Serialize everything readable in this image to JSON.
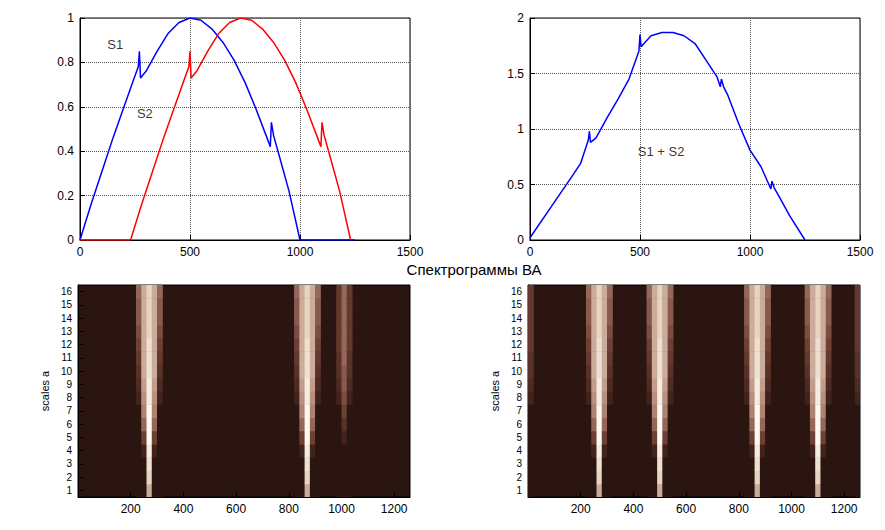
{
  "title": "Спектрограммы ВА",
  "chart_data": [
    {
      "type": "line",
      "grid": true,
      "xlim": [
        0,
        1500
      ],
      "xticks": [
        0,
        500,
        1000,
        1500
      ],
      "ylim": [
        0,
        1
      ],
      "yticks": [
        0,
        0.2,
        0.4,
        0.6,
        0.8,
        1
      ],
      "series": [
        {
          "color": "#0000ff",
          "x": [
            0,
            50,
            100,
            150,
            200,
            250,
            265,
            270,
            275,
            300,
            350,
            400,
            450,
            500,
            550,
            600,
            650,
            700,
            750,
            800,
            850,
            865,
            870,
            880,
            900,
            950,
            1000,
            1250
          ],
          "values": [
            0,
            0.16,
            0.31,
            0.46,
            0.6,
            0.74,
            0.78,
            0.85,
            0.73,
            0.76,
            0.85,
            0.93,
            0.98,
            1.0,
            0.99,
            0.95,
            0.89,
            0.81,
            0.71,
            0.59,
            0.46,
            0.42,
            0.53,
            0.47,
            0.4,
            0.22,
            0,
            0
          ]
        },
        {
          "color": "#ff0000",
          "x": [
            0,
            230,
            280,
            330,
            380,
            430,
            480,
            495,
            500,
            505,
            530,
            580,
            630,
            680,
            730,
            780,
            830,
            880,
            930,
            980,
            1030,
            1080,
            1095,
            1100,
            1110,
            1130,
            1180,
            1230
          ],
          "values": [
            0,
            0,
            0.16,
            0.31,
            0.46,
            0.6,
            0.74,
            0.78,
            0.85,
            0.73,
            0.76,
            0.85,
            0.93,
            0.98,
            1.0,
            0.99,
            0.95,
            0.89,
            0.81,
            0.71,
            0.59,
            0.46,
            0.42,
            0.53,
            0.47,
            0.4,
            0.22,
            0
          ]
        }
      ],
      "annotations": [
        {
          "text": "S1",
          "x": 160,
          "y": 0.88
        },
        {
          "text": "S2",
          "x": 295,
          "y": 0.57
        }
      ]
    },
    {
      "type": "line",
      "grid": true,
      "xlim": [
        0,
        1500
      ],
      "xticks": [
        0,
        500,
        1000,
        1500
      ],
      "ylim": [
        0,
        2
      ],
      "yticks": [
        0,
        0.5,
        1,
        1.5,
        2
      ],
      "series": [
        {
          "color": "#0000ff",
          "x": [
            0,
            100,
            200,
            230,
            265,
            270,
            275,
            300,
            350,
            400,
            450,
            495,
            500,
            505,
            550,
            600,
            650,
            700,
            750,
            800,
            850,
            865,
            870,
            880,
            900,
            950,
            1000,
            1050,
            1095,
            1100,
            1110,
            1130,
            1180,
            1250
          ],
          "values": [
            0.02,
            0.31,
            0.6,
            0.69,
            0.9,
            0.98,
            0.88,
            0.92,
            1.1,
            1.27,
            1.45,
            1.7,
            1.85,
            1.74,
            1.84,
            1.87,
            1.87,
            1.84,
            1.77,
            1.62,
            1.47,
            1.38,
            1.45,
            1.38,
            1.3,
            1.04,
            0.81,
            0.66,
            0.46,
            0.53,
            0.47,
            0.4,
            0.22,
            0
          ]
        }
      ],
      "annotations": [
        {
          "text": "S1 + S2",
          "x": 596,
          "y": 0.8
        }
      ]
    },
    {
      "type": "heatmap",
      "grid": false,
      "ylabel": "scales a",
      "xlim": [
        0,
        1260
      ],
      "xticks": [
        200,
        400,
        600,
        800,
        1000,
        1200
      ],
      "ylim": [
        0.5,
        16.5
      ],
      "yticks": [
        1,
        2,
        3,
        4,
        5,
        6,
        7,
        8,
        9,
        10,
        11,
        12,
        13,
        14,
        15,
        16
      ],
      "x_bin": 20,
      "color_range": [
        0,
        1
      ],
      "scales": [
        1,
        2,
        3,
        4,
        5,
        6,
        7,
        8,
        9,
        10,
        11,
        12,
        13,
        14,
        15,
        16
      ],
      "columns": [
        {
          "x": 230,
          "values": [
            0,
            0,
            0,
            0,
            0,
            0,
            0,
            0.1,
            0.15,
            0.2,
            0.25,
            0.3,
            0.35,
            0.4,
            0.4,
            0.45
          ]
        },
        {
          "x": 250,
          "values": [
            0,
            0,
            0,
            0.1,
            0.3,
            0.45,
            0.55,
            0.6,
            0.65,
            0.7,
            0.7,
            0.7,
            0.7,
            0.7,
            0.7,
            0.7
          ]
        },
        {
          "x": 270,
          "values": [
            0.7,
            0.85,
            0.9,
            0.95,
            1,
            1,
            1,
            0.95,
            0.95,
            0.9,
            0.9,
            0.9,
            0.85,
            0.85,
            0.85,
            0.85
          ]
        },
        {
          "x": 290,
          "values": [
            0,
            0,
            0,
            0.1,
            0.3,
            0.45,
            0.55,
            0.6,
            0.65,
            0.7,
            0.7,
            0.7,
            0.7,
            0.7,
            0.7,
            0.7
          ]
        },
        {
          "x": 310,
          "values": [
            0,
            0,
            0,
            0,
            0,
            0,
            0,
            0.1,
            0.15,
            0.2,
            0.25,
            0.3,
            0.35,
            0.4,
            0.4,
            0.45
          ]
        },
        {
          "x": 830,
          "values": [
            0,
            0,
            0,
            0,
            0,
            0,
            0,
            0.1,
            0.15,
            0.2,
            0.25,
            0.3,
            0.35,
            0.4,
            0.4,
            0.45
          ]
        },
        {
          "x": 850,
          "values": [
            0,
            0,
            0,
            0.1,
            0.3,
            0.45,
            0.55,
            0.6,
            0.65,
            0.7,
            0.7,
            0.7,
            0.7,
            0.7,
            0.7,
            0.7
          ]
        },
        {
          "x": 870,
          "values": [
            0.7,
            0.85,
            0.9,
            0.95,
            1,
            1,
            1,
            0.95,
            0.95,
            0.9,
            0.9,
            0.9,
            0.85,
            0.85,
            0.85,
            0.85
          ]
        },
        {
          "x": 890,
          "values": [
            0,
            0,
            0,
            0.1,
            0.3,
            0.45,
            0.55,
            0.6,
            0.65,
            0.7,
            0.7,
            0.7,
            0.7,
            0.7,
            0.7,
            0.7
          ]
        },
        {
          "x": 910,
          "values": [
            0,
            0,
            0,
            0,
            0,
            0,
            0,
            0.1,
            0.15,
            0.2,
            0.25,
            0.3,
            0.35,
            0.4,
            0.4,
            0.45
          ]
        },
        {
          "x": 990,
          "values": [
            0,
            0,
            0,
            0,
            0,
            0,
            0,
            0.1,
            0.15,
            0.2,
            0.2,
            0.25,
            0.25,
            0.25,
            0.25,
            0.25
          ]
        },
        {
          "x": 1010,
          "values": [
            0,
            0,
            0,
            0,
            0.1,
            0.2,
            0.3,
            0.35,
            0.4,
            0.4,
            0.45,
            0.45,
            0.45,
            0.45,
            0.45,
            0.45
          ]
        },
        {
          "x": 1030,
          "values": [
            0,
            0,
            0,
            0,
            0,
            0,
            0,
            0.1,
            0.15,
            0.2,
            0.2,
            0.25,
            0.25,
            0.25,
            0.25,
            0.25
          ]
        }
      ]
    },
    {
      "type": "heatmap",
      "grid": false,
      "ylabel": "scales a",
      "xlim": [
        0,
        1260
      ],
      "xticks": [
        200,
        400,
        600,
        800,
        1000,
        1200
      ],
      "ylim": [
        0.5,
        16.5
      ],
      "yticks": [
        1,
        2,
        3,
        4,
        5,
        6,
        7,
        8,
        9,
        10,
        11,
        12,
        13,
        14,
        15,
        16
      ],
      "x_bin": 20,
      "color_range": [
        0,
        1
      ],
      "scales": [
        1,
        2,
        3,
        4,
        5,
        6,
        7,
        8,
        9,
        10,
        11,
        12,
        13,
        14,
        15,
        16
      ],
      "columns": [
        {
          "x": 10,
          "values": [
            0,
            0,
            0,
            0,
            0,
            0,
            0,
            0.1,
            0.15,
            0.2,
            0.2,
            0.25,
            0.25,
            0.25,
            0.25,
            0.25
          ]
        },
        {
          "x": 230,
          "values": [
            0,
            0,
            0,
            0,
            0,
            0,
            0,
            0.1,
            0.15,
            0.2,
            0.25,
            0.3,
            0.35,
            0.4,
            0.4,
            0.45
          ]
        },
        {
          "x": 250,
          "values": [
            0,
            0,
            0,
            0.1,
            0.3,
            0.45,
            0.55,
            0.6,
            0.65,
            0.7,
            0.7,
            0.7,
            0.7,
            0.7,
            0.7,
            0.7
          ]
        },
        {
          "x": 270,
          "values": [
            0.7,
            0.85,
            0.9,
            0.95,
            1,
            1,
            1,
            0.95,
            0.95,
            0.9,
            0.9,
            0.9,
            0.85,
            0.85,
            0.85,
            0.85
          ]
        },
        {
          "x": 290,
          "values": [
            0,
            0,
            0,
            0.1,
            0.3,
            0.45,
            0.55,
            0.6,
            0.65,
            0.7,
            0.7,
            0.7,
            0.7,
            0.7,
            0.7,
            0.7
          ]
        },
        {
          "x": 310,
          "values": [
            0,
            0,
            0,
            0,
            0,
            0,
            0,
            0.1,
            0.15,
            0.2,
            0.25,
            0.3,
            0.35,
            0.4,
            0.4,
            0.45
          ]
        },
        {
          "x": 460,
          "values": [
            0,
            0,
            0,
            0,
            0,
            0,
            0,
            0.1,
            0.15,
            0.2,
            0.25,
            0.3,
            0.35,
            0.4,
            0.4,
            0.45
          ]
        },
        {
          "x": 480,
          "values": [
            0,
            0,
            0,
            0.1,
            0.3,
            0.45,
            0.55,
            0.6,
            0.65,
            0.7,
            0.7,
            0.7,
            0.7,
            0.7,
            0.7,
            0.7
          ]
        },
        {
          "x": 500,
          "values": [
            0.7,
            0.85,
            0.9,
            0.95,
            1,
            1,
            1,
            0.95,
            0.95,
            0.9,
            0.9,
            0.9,
            0.85,
            0.85,
            0.85,
            0.85
          ]
        },
        {
          "x": 520,
          "values": [
            0,
            0,
            0,
            0.1,
            0.3,
            0.45,
            0.55,
            0.6,
            0.65,
            0.7,
            0.7,
            0.7,
            0.7,
            0.7,
            0.7,
            0.7
          ]
        },
        {
          "x": 540,
          "values": [
            0,
            0,
            0,
            0,
            0,
            0,
            0,
            0.1,
            0.15,
            0.2,
            0.25,
            0.3,
            0.35,
            0.4,
            0.4,
            0.45
          ]
        },
        {
          "x": 830,
          "values": [
            0,
            0,
            0,
            0,
            0,
            0,
            0,
            0.1,
            0.15,
            0.2,
            0.25,
            0.3,
            0.35,
            0.4,
            0.4,
            0.45
          ]
        },
        {
          "x": 850,
          "values": [
            0,
            0,
            0,
            0.1,
            0.3,
            0.45,
            0.55,
            0.6,
            0.65,
            0.7,
            0.7,
            0.7,
            0.7,
            0.7,
            0.7,
            0.7
          ]
        },
        {
          "x": 870,
          "values": [
            0.7,
            0.85,
            0.9,
            0.95,
            1,
            1,
            1,
            0.95,
            0.95,
            0.9,
            0.9,
            0.9,
            0.85,
            0.85,
            0.85,
            0.85
          ]
        },
        {
          "x": 890,
          "values": [
            0,
            0,
            0,
            0.1,
            0.3,
            0.45,
            0.55,
            0.6,
            0.65,
            0.7,
            0.7,
            0.7,
            0.7,
            0.7,
            0.7,
            0.7
          ]
        },
        {
          "x": 910,
          "values": [
            0,
            0,
            0,
            0,
            0,
            0,
            0,
            0.1,
            0.15,
            0.2,
            0.25,
            0.3,
            0.35,
            0.4,
            0.4,
            0.45
          ]
        },
        {
          "x": 1060,
          "values": [
            0,
            0,
            0,
            0,
            0,
            0,
            0,
            0.1,
            0.15,
            0.2,
            0.25,
            0.3,
            0.35,
            0.4,
            0.4,
            0.45
          ]
        },
        {
          "x": 1080,
          "values": [
            0,
            0,
            0,
            0.1,
            0.3,
            0.45,
            0.55,
            0.6,
            0.65,
            0.7,
            0.7,
            0.7,
            0.7,
            0.7,
            0.7,
            0.7
          ]
        },
        {
          "x": 1100,
          "values": [
            0.7,
            0.85,
            0.9,
            0.95,
            1,
            1,
            1,
            0.95,
            0.95,
            0.9,
            0.9,
            0.9,
            0.85,
            0.85,
            0.85,
            0.85
          ]
        },
        {
          "x": 1120,
          "values": [
            0,
            0,
            0,
            0.1,
            0.3,
            0.45,
            0.55,
            0.6,
            0.65,
            0.7,
            0.7,
            0.7,
            0.7,
            0.7,
            0.7,
            0.7
          ]
        },
        {
          "x": 1140,
          "values": [
            0,
            0,
            0,
            0,
            0,
            0,
            0,
            0.1,
            0.15,
            0.2,
            0.25,
            0.3,
            0.35,
            0.4,
            0.4,
            0.45
          ]
        },
        {
          "x": 1250,
          "values": [
            0,
            0,
            0,
            0,
            0,
            0,
            0,
            0.1,
            0.15,
            0.2,
            0.2,
            0.25,
            0.25,
            0.25,
            0.25,
            0.25
          ]
        }
      ]
    }
  ]
}
